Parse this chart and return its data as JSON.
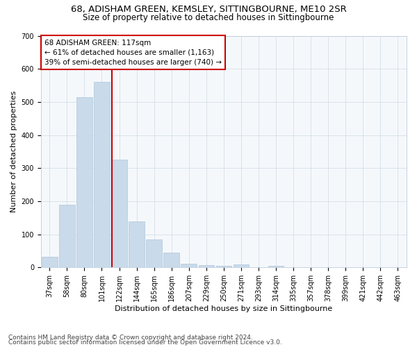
{
  "title_line1": "68, ADISHAM GREEN, KEMSLEY, SITTINGBOURNE, ME10 2SR",
  "title_line2": "Size of property relative to detached houses in Sittingbourne",
  "xlabel": "Distribution of detached houses by size in Sittingbourne",
  "ylabel": "Number of detached properties",
  "bar_values": [
    33,
    190,
    515,
    560,
    325,
    140,
    85,
    45,
    12,
    6,
    5,
    10,
    0,
    5,
    0,
    0,
    0,
    0,
    0,
    0,
    0
  ],
  "bar_labels": [
    "37sqm",
    "58sqm",
    "80sqm",
    "101sqm",
    "122sqm",
    "144sqm",
    "165sqm",
    "186sqm",
    "207sqm",
    "229sqm",
    "250sqm",
    "271sqm",
    "293sqm",
    "314sqm",
    "335sqm",
    "357sqm",
    "378sqm",
    "399sqm",
    "421sqm",
    "442sqm",
    "463sqm"
  ],
  "bar_color": "#c9daea",
  "bar_edgecolor": "#b0c8dc",
  "vline_x": 4,
  "vline_color": "#cc0000",
  "annotation_line1": "68 ADISHAM GREEN: 117sqm",
  "annotation_line2": "← 61% of detached houses are smaller (1,163)",
  "annotation_line3": "39% of semi-detached houses are larger (740) →",
  "annotation_box_color": "#cc0000",
  "annotation_box_bg": "#ffffff",
  "ylim": [
    0,
    700
  ],
  "yticks": [
    0,
    100,
    200,
    300,
    400,
    500,
    600,
    700
  ],
  "grid_color": "#d4dfe8",
  "footer_line1": "Contains HM Land Registry data © Crown copyright and database right 2024.",
  "footer_line2": "Contains public sector information licensed under the Open Government Licence v3.0.",
  "bg_color": "#ffffff",
  "plot_bg_color": "#f5f8fb",
  "title_fontsize": 9.5,
  "subtitle_fontsize": 8.5,
  "axis_label_fontsize": 8,
  "tick_fontsize": 7,
  "annotation_fontsize": 7.5,
  "footer_fontsize": 6.5
}
